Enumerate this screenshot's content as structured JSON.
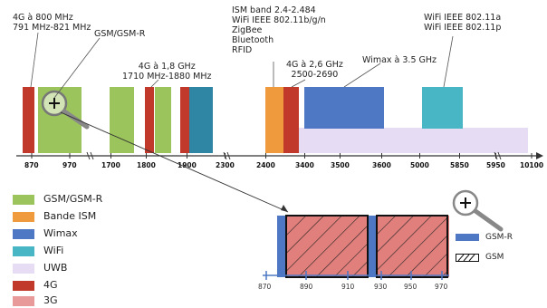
{
  "colors": {
    "gsm": "#9bc45c",
    "ism": "#ef9a3c",
    "wimax": "#4f78c4",
    "wifi": "#49b6c6",
    "uwb": "#e6dcf4",
    "g4": "#c0392b",
    "g3": "#e89a9a"
  },
  "top_labels": {
    "g4_800": "4G à 800 MHz\n791 MHz-821 MHz",
    "gsm_r": "GSM/GSM-R",
    "g4_18": "4G à 1,8 GHz\n1710 MHz-1880 MHz",
    "ism": "ISM band 2.4-2.484\nWiFi IEEE 802.11b/g/n\nZigBee\nBluetooth\nRFID",
    "g4_26": "4G à 2,6 GHz\n2500-2690",
    "wimax": "Wimax à 3.5 GHz",
    "wifi_a": "WiFi IEEE 802.11a\nWiFi IEEE 802.11p"
  },
  "axis_ticks": [
    "870",
    "970",
    "1700",
    "1800",
    "1900",
    "2300",
    "2400",
    "3400",
    "3500",
    "3600",
    "5000",
    "5850",
    "5950",
    "10100"
  ],
  "legend": [
    {
      "label": "GSM/GSM-R",
      "color_key": "gsm"
    },
    {
      "label": "Bande ISM",
      "color_key": "ism"
    },
    {
      "label": "Wimax",
      "color_key": "wimax"
    },
    {
      "label": "WiFi",
      "color_key": "wifi"
    },
    {
      "label": "UWB",
      "color_key": "uwb"
    },
    {
      "label": "4G",
      "color_key": "g4"
    },
    {
      "label": "3G",
      "color_key": "g3"
    }
  ],
  "zoom": {
    "ticks": [
      "870",
      "890",
      "910",
      "930",
      "950",
      "970"
    ],
    "legend": [
      {
        "label": "GSM-R"
      },
      {
        "label": "GSM"
      }
    ]
  }
}
